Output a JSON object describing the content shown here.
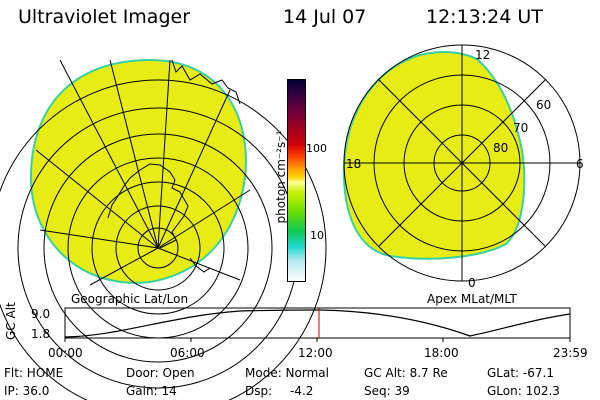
{
  "header": {
    "instrument": "Ultraviolet Imager",
    "date": "14 Jul 07",
    "time": "12:13:24 UT"
  },
  "left_panel": {
    "label": "Geographic Lat/Lon"
  },
  "right_panel": {
    "label": "Apex  MLat/MLT",
    "mlt_labels": {
      "top": "12",
      "left": "18",
      "right": "6",
      "bottom": "0"
    },
    "lat_labels": [
      "60",
      "70",
      "80"
    ]
  },
  "colorbar": {
    "unit": "photon cm⁻²s⁻¹",
    "ticks": [
      "100",
      "10"
    ],
    "colors": [
      "#000030",
      "#3a0040",
      "#70003a",
      "#a00020",
      "#d0000a",
      "#ff4000",
      "#ff9a00",
      "#ffd000",
      "#ffff90",
      "#c8f000",
      "#70e000",
      "#10c850",
      "#20d8d0",
      "#b8e8f0",
      "#ffffff"
    ]
  },
  "altitude_plot": {
    "ylabel": "GC Alt",
    "y_ticks": [
      "9.0",
      "1.8"
    ],
    "x_ticks": [
      "00:00",
      "06:00",
      "12:00",
      "18:00",
      "23:59"
    ],
    "current_marker_hour": 12.22
  },
  "footer": {
    "row1": {
      "flt": "Flt: HOME",
      "door": "Door: Open",
      "mode": "Mode: Normal",
      "gc_alt": "GC Alt: 8.7 Re",
      "glat": "GLat: -67.1"
    },
    "row2": {
      "ip": "IP: 36.0",
      "gain": "Gain: 14",
      "dsp_label": "Dsp:",
      "dsp_value": "-4.2",
      "seq": "Seq: 39",
      "glon": "GLon: 102.3"
    }
  },
  "colors": {
    "aurora_fill": "#e6ec14",
    "edge": "#38d0a0",
    "marker": "#cc0000"
  }
}
